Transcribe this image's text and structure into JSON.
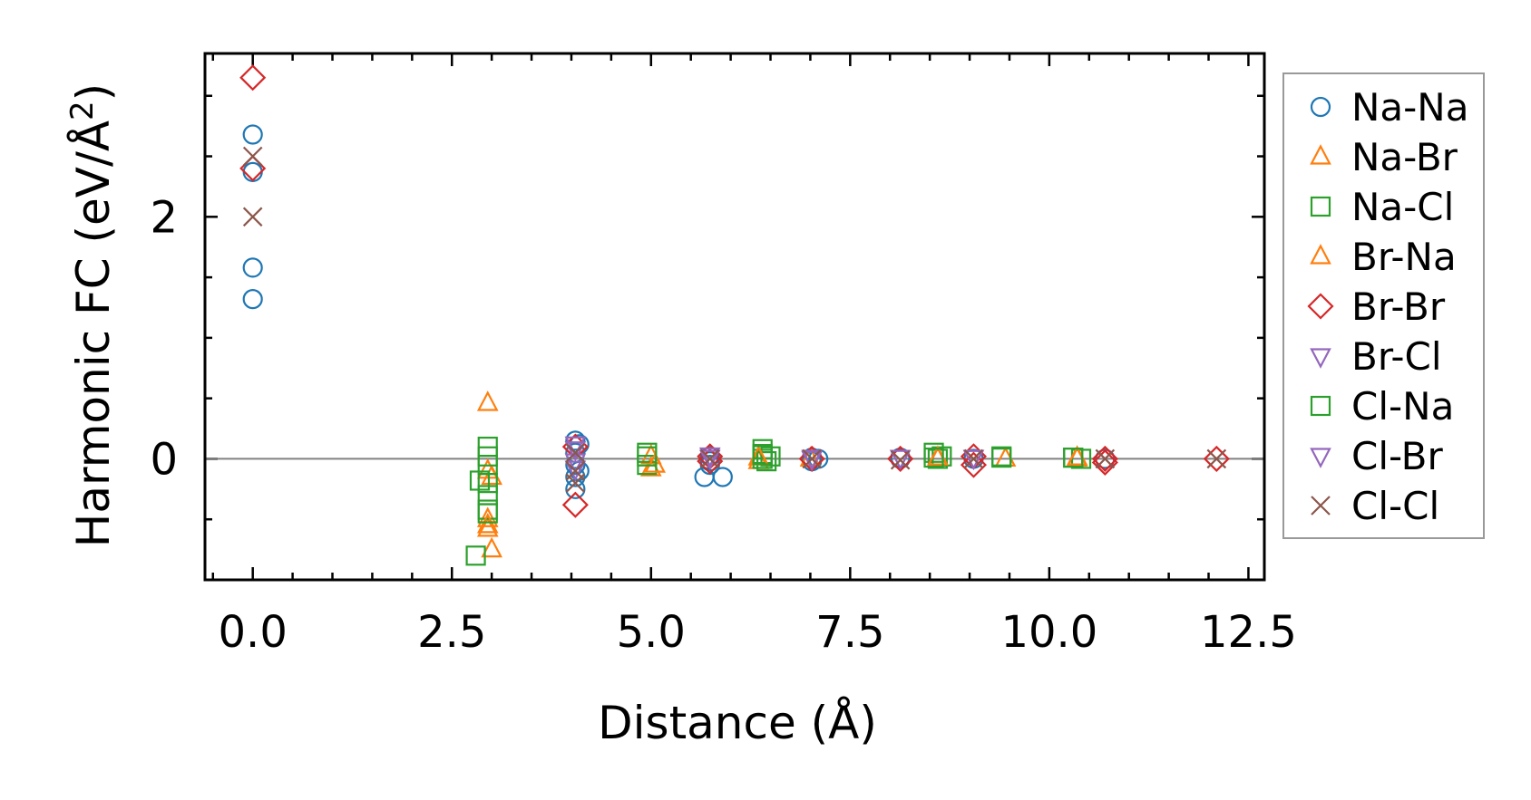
{
  "chart_data": {
    "type": "scatter",
    "title": "",
    "xlabel": "Distance (Å)",
    "ylabel_main": "Harmonic FC (eV/Å",
    "ylabel_sup": "2",
    "ylabel_close": ")",
    "xlim": [
      -0.6,
      12.7
    ],
    "ylim": [
      -1.0,
      3.35
    ],
    "xticks": [
      0.0,
      2.5,
      5.0,
      7.5,
      10.0,
      12.5
    ],
    "xtick_labels": [
      "0.0",
      "2.5",
      "5.0",
      "7.5",
      "10.0",
      "12.5"
    ],
    "yticks": [
      0,
      2
    ],
    "ytick_labels": [
      "0",
      "2"
    ],
    "zero_line": true,
    "grid": false,
    "legend_position": "right",
    "series": [
      {
        "name": "Na-Na",
        "marker": "circle",
        "color": "#1f77b4",
        "points": [
          [
            0,
            2.68
          ],
          [
            0,
            2.37
          ],
          [
            0,
            1.58
          ],
          [
            0,
            1.32
          ],
          [
            4.05,
            0.15
          ],
          [
            4.05,
            0.05
          ],
          [
            4.05,
            -0.05
          ],
          [
            4.05,
            -0.15
          ],
          [
            4.05,
            -0.25
          ],
          [
            4.1,
            0.12
          ],
          [
            4.1,
            -0.1
          ],
          [
            5.74,
            0.02
          ],
          [
            5.74,
            -0.02
          ],
          [
            5.67,
            -0.15
          ],
          [
            5.9,
            -0.15
          ],
          [
            5.74,
            -0.05
          ],
          [
            7.02,
            0.01
          ],
          [
            7.02,
            -0.02
          ],
          [
            7.1,
            0
          ],
          [
            8.13,
            0
          ],
          [
            8.13,
            0.01
          ],
          [
            9.05,
            0
          ],
          [
            10.7,
            0
          ]
        ]
      },
      {
        "name": "Na-Br",
        "marker": "triangle-up",
        "color": "#ff7f0e",
        "points": [
          [
            2.95,
            0.46
          ],
          [
            2.95,
            -0.1
          ],
          [
            3.0,
            -0.15
          ],
          [
            2.95,
            -0.5
          ],
          [
            2.95,
            -0.58
          ],
          [
            3.0,
            -0.75
          ],
          [
            5.0,
            0.02
          ],
          [
            5.0,
            -0.08
          ],
          [
            6.35,
            -0.02
          ],
          [
            7.0,
            0
          ],
          [
            8.6,
            0
          ],
          [
            9.45,
            0
          ],
          [
            10.35,
            0
          ]
        ]
      },
      {
        "name": "Na-Cl",
        "marker": "square",
        "color": "#2ca02c",
        "points": [
          [
            2.95,
            0.1
          ],
          [
            2.95,
            0.02
          ],
          [
            2.95,
            -0.05
          ],
          [
            2.95,
            -0.2
          ],
          [
            2.85,
            -0.18
          ],
          [
            2.95,
            -0.3
          ],
          [
            2.95,
            -0.42
          ],
          [
            2.8,
            -0.8
          ],
          [
            4.95,
            0.05
          ],
          [
            4.95,
            -0.05
          ],
          [
            6.4,
            0.08
          ],
          [
            6.4,
            0.04
          ],
          [
            6.4,
            0
          ],
          [
            6.45,
            -0.02
          ],
          [
            6.5,
            0.02
          ],
          [
            8.55,
            0.05
          ],
          [
            8.6,
            0
          ],
          [
            8.65,
            0.02
          ],
          [
            9.4,
            0.02
          ],
          [
            10.3,
            0.01
          ],
          [
            10.4,
            0
          ]
        ]
      },
      {
        "name": "Br-Na",
        "marker": "triangle-up",
        "color": "#ff7f0e",
        "points": [
          [
            2.95,
            -0.55
          ],
          [
            5.05,
            -0.05
          ],
          [
            6.35,
            0.01
          ],
          [
            8.6,
            0.01
          ],
          [
            10.35,
            0.01
          ]
        ]
      },
      {
        "name": "Br-Br",
        "marker": "diamond",
        "color": "#d62728",
        "points": [
          [
            0,
            3.15
          ],
          [
            0,
            2.4
          ],
          [
            4.05,
            0.1
          ],
          [
            4.05,
            -0.38
          ],
          [
            5.74,
            0.02
          ],
          [
            5.74,
            -0.02
          ],
          [
            7.02,
            0
          ],
          [
            8.13,
            0
          ],
          [
            9.05,
            0.02
          ],
          [
            9.05,
            -0.05
          ],
          [
            10.7,
            0
          ],
          [
            10.7,
            -0.03
          ],
          [
            12.1,
            0
          ]
        ]
      },
      {
        "name": "Br-Cl",
        "marker": "triangle-down",
        "color": "#9467bd",
        "points": [
          [
            4.05,
            0.08
          ],
          [
            4.05,
            -0.02
          ],
          [
            5.74,
            0.01
          ],
          [
            7.02,
            0
          ],
          [
            8.13,
            0.01
          ],
          [
            9.05,
            0.01
          ]
        ]
      },
      {
        "name": "Cl-Na",
        "marker": "square",
        "color": "#2ca02c",
        "points": [
          [
            2.95,
            -0.45
          ],
          [
            4.95,
            0.02
          ],
          [
            6.4,
            0.03
          ],
          [
            8.55,
            0.01
          ],
          [
            9.4,
            0.01
          ],
          [
            10.3,
            0.01
          ]
        ]
      },
      {
        "name": "Cl-Br",
        "marker": "triangle-down",
        "color": "#9467bd",
        "points": [
          [
            4.05,
            0.12
          ],
          [
            4.05,
            -0.08
          ],
          [
            5.74,
            0.03
          ],
          [
            7.02,
            0.01
          ],
          [
            9.05,
            0.01
          ]
        ]
      },
      {
        "name": "Cl-Cl",
        "marker": "x",
        "color": "#8c564b",
        "points": [
          [
            0,
            2.5
          ],
          [
            0,
            2.0
          ],
          [
            4.05,
            0.05
          ],
          [
            4.05,
            -0.1
          ],
          [
            4.05,
            -0.2
          ],
          [
            5.74,
            0
          ],
          [
            7.02,
            0
          ],
          [
            8.13,
            -0.01
          ],
          [
            9.05,
            0
          ],
          [
            10.7,
            0
          ],
          [
            12.1,
            0
          ]
        ]
      }
    ]
  }
}
